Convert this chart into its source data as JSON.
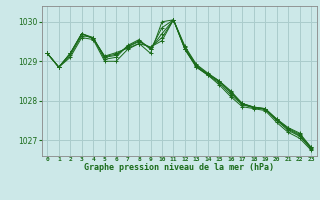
{
  "title": "Graphe pression niveau de la mer (hPa)",
  "bg_color": "#cce8e8",
  "grid_color": "#aacccc",
  "line_color": "#1a6b1a",
  "xlim": [
    -0.5,
    23.5
  ],
  "ylim": [
    1026.6,
    1030.4
  ],
  "yticks": [
    1027,
    1028,
    1029,
    1030
  ],
  "xtick_labels": [
    "0",
    "1",
    "2",
    "3",
    "4",
    "5",
    "6",
    "7",
    "8",
    "9",
    "10",
    "11",
    "12",
    "13",
    "14",
    "15",
    "16",
    "17",
    "18",
    "19",
    "20",
    "21",
    "22",
    "23"
  ],
  "series": [
    [
      1029.2,
      1028.85,
      1029.1,
      1029.6,
      1029.55,
      1029.0,
      1029.0,
      1029.3,
      1029.45,
      1029.2,
      1030.0,
      1030.05,
      1029.3,
      1028.85,
      1028.65,
      1028.4,
      1028.1,
      1027.85,
      1027.8,
      1027.75,
      1027.45,
      1027.2,
      1027.05,
      1026.75
    ],
    [
      1029.2,
      1028.85,
      1029.15,
      1029.65,
      1029.6,
      1029.05,
      1029.1,
      1029.4,
      1029.55,
      1029.3,
      1029.85,
      1030.05,
      1029.3,
      1028.85,
      1028.65,
      1028.45,
      1028.15,
      1027.9,
      1027.82,
      1027.78,
      1027.5,
      1027.25,
      1027.1,
      1026.78
    ],
    [
      1029.2,
      1028.85,
      1029.2,
      1029.7,
      1029.6,
      1029.1,
      1029.15,
      1029.38,
      1029.52,
      1029.32,
      1029.7,
      1030.05,
      1029.32,
      1028.87,
      1028.67,
      1028.48,
      1028.2,
      1027.92,
      1027.83,
      1027.79,
      1027.52,
      1027.28,
      1027.12,
      1026.8
    ],
    [
      1029.2,
      1028.85,
      1029.2,
      1029.7,
      1029.58,
      1029.12,
      1029.18,
      1029.36,
      1029.5,
      1029.35,
      1029.6,
      1030.05,
      1029.35,
      1028.9,
      1028.68,
      1028.5,
      1028.22,
      1027.93,
      1027.84,
      1027.8,
      1027.53,
      1027.3,
      1027.15,
      1026.82
    ],
    [
      1029.2,
      1028.85,
      1029.2,
      1029.7,
      1029.57,
      1029.13,
      1029.22,
      1029.33,
      1029.45,
      1029.36,
      1029.52,
      1030.05,
      1029.38,
      1028.92,
      1028.7,
      1028.5,
      1028.25,
      1027.93,
      1027.84,
      1027.8,
      1027.54,
      1027.32,
      1027.18,
      1026.82
    ]
  ]
}
